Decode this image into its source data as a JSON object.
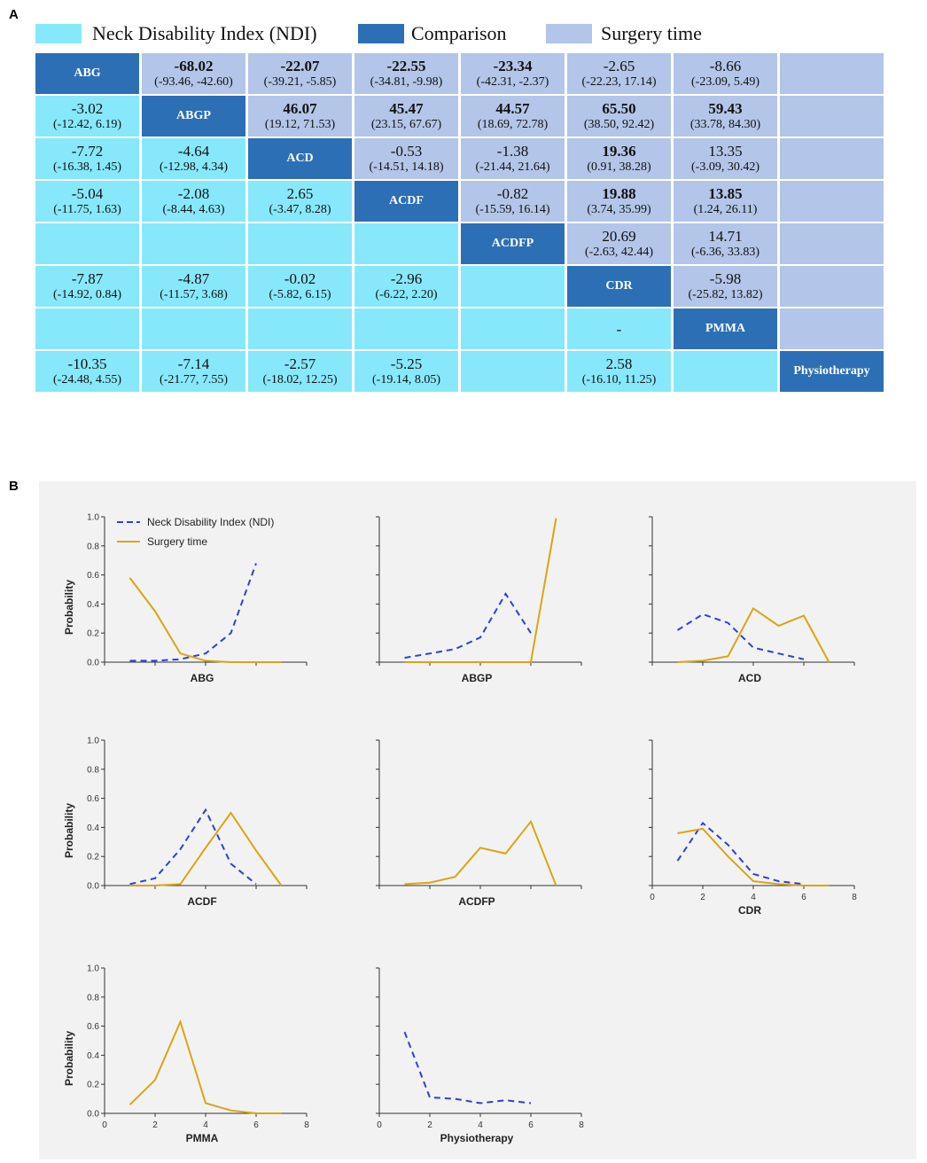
{
  "panel_a": {
    "label": "A",
    "legend": [
      {
        "label": "Neck Disability Index (NDI)",
        "color": "#87e8fb"
      },
      {
        "label": "Comparison",
        "color": "#2d6fb5"
      },
      {
        "label": "Surgery time",
        "color": "#b3c5e8"
      }
    ],
    "rows": [
      [
        {
          "type": "diag",
          "label": "ABG"
        },
        {
          "type": "st",
          "v": "-68.02",
          "ci": "(-93.46, -42.60)",
          "bold": true
        },
        {
          "type": "st",
          "v": "-22.07",
          "ci": "(-39.21, -5.85)",
          "bold": true
        },
        {
          "type": "st",
          "v": "-22.55",
          "ci": "(-34.81, -9.98)",
          "bold": true
        },
        {
          "type": "st",
          "v": "-23.34",
          "ci": "(-42.31, -2.37)",
          "bold": true
        },
        {
          "type": "st",
          "v": "-2.65",
          "ci": "(-22.23, 17.14)",
          "bold": false
        },
        {
          "type": "st",
          "v": "-8.66",
          "ci": "(-23.09, 5.49)",
          "bold": false
        },
        {
          "type": "st",
          "v": "",
          "ci": "",
          "bold": false
        }
      ],
      [
        {
          "type": "ndi",
          "v": "-3.02",
          "ci": "(-12.42, 6.19)",
          "bold": false
        },
        {
          "type": "diag",
          "label": "ABGP"
        },
        {
          "type": "st",
          "v": "46.07",
          "ci": "(19.12, 71.53)",
          "bold": true
        },
        {
          "type": "st",
          "v": "45.47",
          "ci": "(23.15, 67.67)",
          "bold": true
        },
        {
          "type": "st",
          "v": "44.57",
          "ci": "(18.69, 72.78)",
          "bold": true
        },
        {
          "type": "st",
          "v": "65.50",
          "ci": "(38.50, 92.42)",
          "bold": true
        },
        {
          "type": "st",
          "v": "59.43",
          "ci": "(33.78, 84.30)",
          "bold": true
        },
        {
          "type": "st",
          "v": "",
          "ci": "",
          "bold": false
        }
      ],
      [
        {
          "type": "ndi",
          "v": "-7.72",
          "ci": "(-16.38, 1.45)",
          "bold": false
        },
        {
          "type": "ndi",
          "v": "-4.64",
          "ci": "(-12.98, 4.34)",
          "bold": false
        },
        {
          "type": "diag",
          "label": "ACD"
        },
        {
          "type": "st",
          "v": "-0.53",
          "ci": "(-14.51, 14.18)",
          "bold": false
        },
        {
          "type": "st",
          "v": "-1.38",
          "ci": "(-21.44, 21.64)",
          "bold": false
        },
        {
          "type": "st",
          "v": "19.36",
          "ci": "(0.91, 38.28)",
          "bold": true
        },
        {
          "type": "st",
          "v": "13.35",
          "ci": "(-3.09, 30.42)",
          "bold": false
        },
        {
          "type": "st",
          "v": "",
          "ci": "",
          "bold": false
        }
      ],
      [
        {
          "type": "ndi",
          "v": "-5.04",
          "ci": "(-11.75, 1.63)",
          "bold": false
        },
        {
          "type": "ndi",
          "v": "-2.08",
          "ci": "(-8.44, 4.63)",
          "bold": false
        },
        {
          "type": "ndi",
          "v": "2.65",
          "ci": "(-3.47, 8.28)",
          "bold": false
        },
        {
          "type": "diag",
          "label": "ACDF"
        },
        {
          "type": "st",
          "v": "-0.82",
          "ci": "(-15.59, 16.14)",
          "bold": false
        },
        {
          "type": "st",
          "v": "19.88",
          "ci": "(3.74, 35.99)",
          "bold": true
        },
        {
          "type": "st",
          "v": "13.85",
          "ci": "(1.24, 26.11)",
          "bold": true
        },
        {
          "type": "st",
          "v": "",
          "ci": "",
          "bold": false
        }
      ],
      [
        {
          "type": "ndi",
          "v": "",
          "ci": "",
          "bold": false
        },
        {
          "type": "ndi",
          "v": "",
          "ci": "",
          "bold": false
        },
        {
          "type": "ndi",
          "v": "",
          "ci": "",
          "bold": false
        },
        {
          "type": "ndi",
          "v": "",
          "ci": "",
          "bold": false
        },
        {
          "type": "diag",
          "label": "ACDFP"
        },
        {
          "type": "st",
          "v": "20.69",
          "ci": "(-2.63, 42.44)",
          "bold": false
        },
        {
          "type": "st",
          "v": "14.71",
          "ci": "(-6.36, 33.83)",
          "bold": false
        },
        {
          "type": "st",
          "v": "",
          "ci": "",
          "bold": false
        }
      ],
      [
        {
          "type": "ndi",
          "v": "-7.87",
          "ci": "(-14.92, 0.84)",
          "bold": false
        },
        {
          "type": "ndi",
          "v": "-4.87",
          "ci": "(-11.57, 3.68)",
          "bold": false
        },
        {
          "type": "ndi",
          "v": "-0.02",
          "ci": "(-5.82, 6.15)",
          "bold": false
        },
        {
          "type": "ndi",
          "v": "-2.96",
          "ci": "(-6.22, 2.20)",
          "bold": false
        },
        {
          "type": "ndi",
          "v": "",
          "ci": "",
          "bold": false
        },
        {
          "type": "diag",
          "label": "CDR"
        },
        {
          "type": "st",
          "v": "-5.98",
          "ci": "(-25.82, 13.82)",
          "bold": false
        },
        {
          "type": "st",
          "v": "",
          "ci": "",
          "bold": false
        }
      ],
      [
        {
          "type": "ndi",
          "v": "",
          "ci": "",
          "bold": false
        },
        {
          "type": "ndi",
          "v": "",
          "ci": "",
          "bold": false
        },
        {
          "type": "ndi",
          "v": "",
          "ci": "",
          "bold": false
        },
        {
          "type": "ndi",
          "v": "",
          "ci": "",
          "bold": false
        },
        {
          "type": "ndi",
          "v": "",
          "ci": "",
          "bold": false
        },
        {
          "type": "ndi",
          "v": "-",
          "ci": "",
          "bold": false
        },
        {
          "type": "diag",
          "label": "PMMA"
        },
        {
          "type": "st",
          "v": "",
          "ci": "",
          "bold": false
        }
      ],
      [
        {
          "type": "ndi",
          "v": "-10.35",
          "ci": "(-24.48, 4.55)",
          "bold": false
        },
        {
          "type": "ndi",
          "v": "-7.14",
          "ci": "(-21.77, 7.55)",
          "bold": false
        },
        {
          "type": "ndi",
          "v": "-2.57",
          "ci": "(-18.02, 12.25)",
          "bold": false
        },
        {
          "type": "ndi",
          "v": "-5.25",
          "ci": "(-19.14, 8.05)",
          "bold": false
        },
        {
          "type": "ndi",
          "v": "",
          "ci": "",
          "bold": false
        },
        {
          "type": "ndi",
          "v": "2.58",
          "ci": "(-16.10, 11.25)",
          "bold": false
        },
        {
          "type": "ndi",
          "v": "",
          "ci": "",
          "bold": false
        },
        {
          "type": "diag",
          "label": "Physiotherapy"
        }
      ]
    ]
  },
  "panel_b": {
    "label": "B",
    "legend": [
      {
        "label": "Neck Disability Index (NDI)",
        "color": "#2f3fd6",
        "dash": true
      },
      {
        "label": "Surgery time",
        "color": "#d9a514",
        "dash": false
      }
    ]
  },
  "chart_data": [
    {
      "type": "line",
      "title": "ABG",
      "xlabel": "ABG",
      "ylabel": "Probability",
      "ylim": [
        0,
        1.0
      ],
      "xlim": [
        0,
        8
      ],
      "show_xticks": false,
      "yticks": [
        "0.0",
        "0.2",
        "0.4",
        "0.6",
        "0.8",
        "1.0"
      ],
      "xticks": [],
      "series": [
        {
          "name": "Neck Disability Index (NDI)",
          "x": [
            1,
            2,
            3,
            4,
            5,
            6
          ],
          "values": [
            0.01,
            0.01,
            0.02,
            0.06,
            0.2,
            0.68
          ]
        },
        {
          "name": "Surgery time",
          "x": [
            1,
            2,
            3,
            4,
            5,
            6,
            7
          ],
          "values": [
            0.58,
            0.35,
            0.06,
            0.01,
            0.0,
            0.0,
            0.0
          ]
        }
      ]
    },
    {
      "type": "line",
      "title": "ABGP",
      "xlabel": "ABGP",
      "ylabel": "",
      "ylim": [
        0,
        1.0
      ],
      "xlim": [
        0,
        8
      ],
      "show_xticks": false,
      "yticks": [],
      "xticks": [],
      "series": [
        {
          "name": "Neck Disability Index (NDI)",
          "x": [
            1,
            2,
            3,
            4,
            5,
            6
          ],
          "values": [
            0.03,
            0.06,
            0.09,
            0.17,
            0.47,
            0.2
          ]
        },
        {
          "name": "Surgery time",
          "x": [
            1,
            2,
            3,
            4,
            5,
            6,
            7
          ],
          "values": [
            0.0,
            0.0,
            0.0,
            0.0,
            0.0,
            0.0,
            0.99
          ]
        }
      ]
    },
    {
      "type": "line",
      "title": "ACD",
      "xlabel": "ACD",
      "ylabel": "",
      "ylim": [
        0,
        1.0
      ],
      "xlim": [
        0,
        8
      ],
      "show_xticks": false,
      "yticks": [],
      "xticks": [],
      "series": [
        {
          "name": "Neck Disability Index (NDI)",
          "x": [
            1,
            2,
            3,
            4,
            5,
            6
          ],
          "values": [
            0.22,
            0.33,
            0.27,
            0.1,
            0.06,
            0.02
          ]
        },
        {
          "name": "Surgery time",
          "x": [
            1,
            2,
            3,
            4,
            5,
            6,
            7
          ],
          "values": [
            0.0,
            0.01,
            0.04,
            0.37,
            0.25,
            0.32,
            0.0
          ]
        }
      ]
    },
    {
      "type": "line",
      "title": "ACDF",
      "xlabel": "ACDF",
      "ylabel": "Probability",
      "ylim": [
        0,
        1.0
      ],
      "xlim": [
        0,
        8
      ],
      "show_xticks": false,
      "yticks": [
        "0.0",
        "0.2",
        "0.4",
        "0.6",
        "0.8",
        "1.0"
      ],
      "xticks": [],
      "series": [
        {
          "name": "Neck Disability Index (NDI)",
          "x": [
            1,
            2,
            3,
            4,
            5,
            6
          ],
          "values": [
            0.01,
            0.05,
            0.25,
            0.52,
            0.15,
            0.01
          ]
        },
        {
          "name": "Surgery time",
          "x": [
            1,
            2,
            3,
            4,
            5,
            6,
            7
          ],
          "values": [
            0.0,
            0.0,
            0.01,
            0.26,
            0.5,
            0.24,
            0.0
          ]
        }
      ]
    },
    {
      "type": "line",
      "title": "ACDFP",
      "xlabel": "ACDFP",
      "ylabel": "",
      "ylim": [
        0,
        1.0
      ],
      "xlim": [
        0,
        8
      ],
      "show_xticks": false,
      "yticks": [],
      "xticks": [],
      "series": [
        {
          "name": "Surgery time",
          "x": [
            1,
            2,
            3,
            4,
            5,
            6,
            7
          ],
          "values": [
            0.01,
            0.02,
            0.06,
            0.26,
            0.22,
            0.44,
            0.0
          ]
        }
      ]
    },
    {
      "type": "line",
      "title": "CDR",
      "xlabel": "CDR",
      "ylabel": "",
      "ylim": [
        0,
        1.0
      ],
      "xlim": [
        0,
        8
      ],
      "show_xticks": true,
      "yticks": [],
      "xticks": [
        "0",
        "2",
        "4",
        "6",
        "8"
      ],
      "series": [
        {
          "name": "Neck Disability Index (NDI)",
          "x": [
            1,
            2,
            3,
            4,
            5,
            6
          ],
          "values": [
            0.17,
            0.43,
            0.28,
            0.08,
            0.03,
            0.01
          ]
        },
        {
          "name": "Surgery time",
          "x": [
            1,
            2,
            3,
            4,
            5,
            6,
            7
          ],
          "values": [
            0.36,
            0.39,
            0.2,
            0.03,
            0.01,
            0.0,
            0.0
          ]
        }
      ]
    },
    {
      "type": "line",
      "title": "PMMA",
      "xlabel": "PMMA",
      "ylabel": "Probability",
      "ylim": [
        0,
        1.0
      ],
      "xlim": [
        0,
        8
      ],
      "show_xticks": true,
      "yticks": [
        "0.0",
        "0.2",
        "0.4",
        "0.6",
        "0.8",
        "1.0"
      ],
      "xticks": [
        "0",
        "2",
        "4",
        "6",
        "8"
      ],
      "series": [
        {
          "name": "Surgery time",
          "x": [
            1,
            2,
            3,
            4,
            5,
            6,
            7
          ],
          "values": [
            0.06,
            0.23,
            0.63,
            0.07,
            0.02,
            0.0,
            0.0
          ]
        }
      ]
    },
    {
      "type": "line",
      "title": "Physiotherapy",
      "xlabel": "Physiotherapy",
      "ylabel": "",
      "ylim": [
        0,
        1.0
      ],
      "xlim": [
        0,
        8
      ],
      "show_xticks": true,
      "yticks": [],
      "xticks": [
        "0",
        "2",
        "4",
        "6",
        "8"
      ],
      "series": [
        {
          "name": "Neck Disability Index (NDI)",
          "x": [
            1,
            2,
            3,
            4,
            5,
            6
          ],
          "values": [
            0.56,
            0.11,
            0.1,
            0.07,
            0.09,
            0.07
          ]
        }
      ]
    }
  ]
}
